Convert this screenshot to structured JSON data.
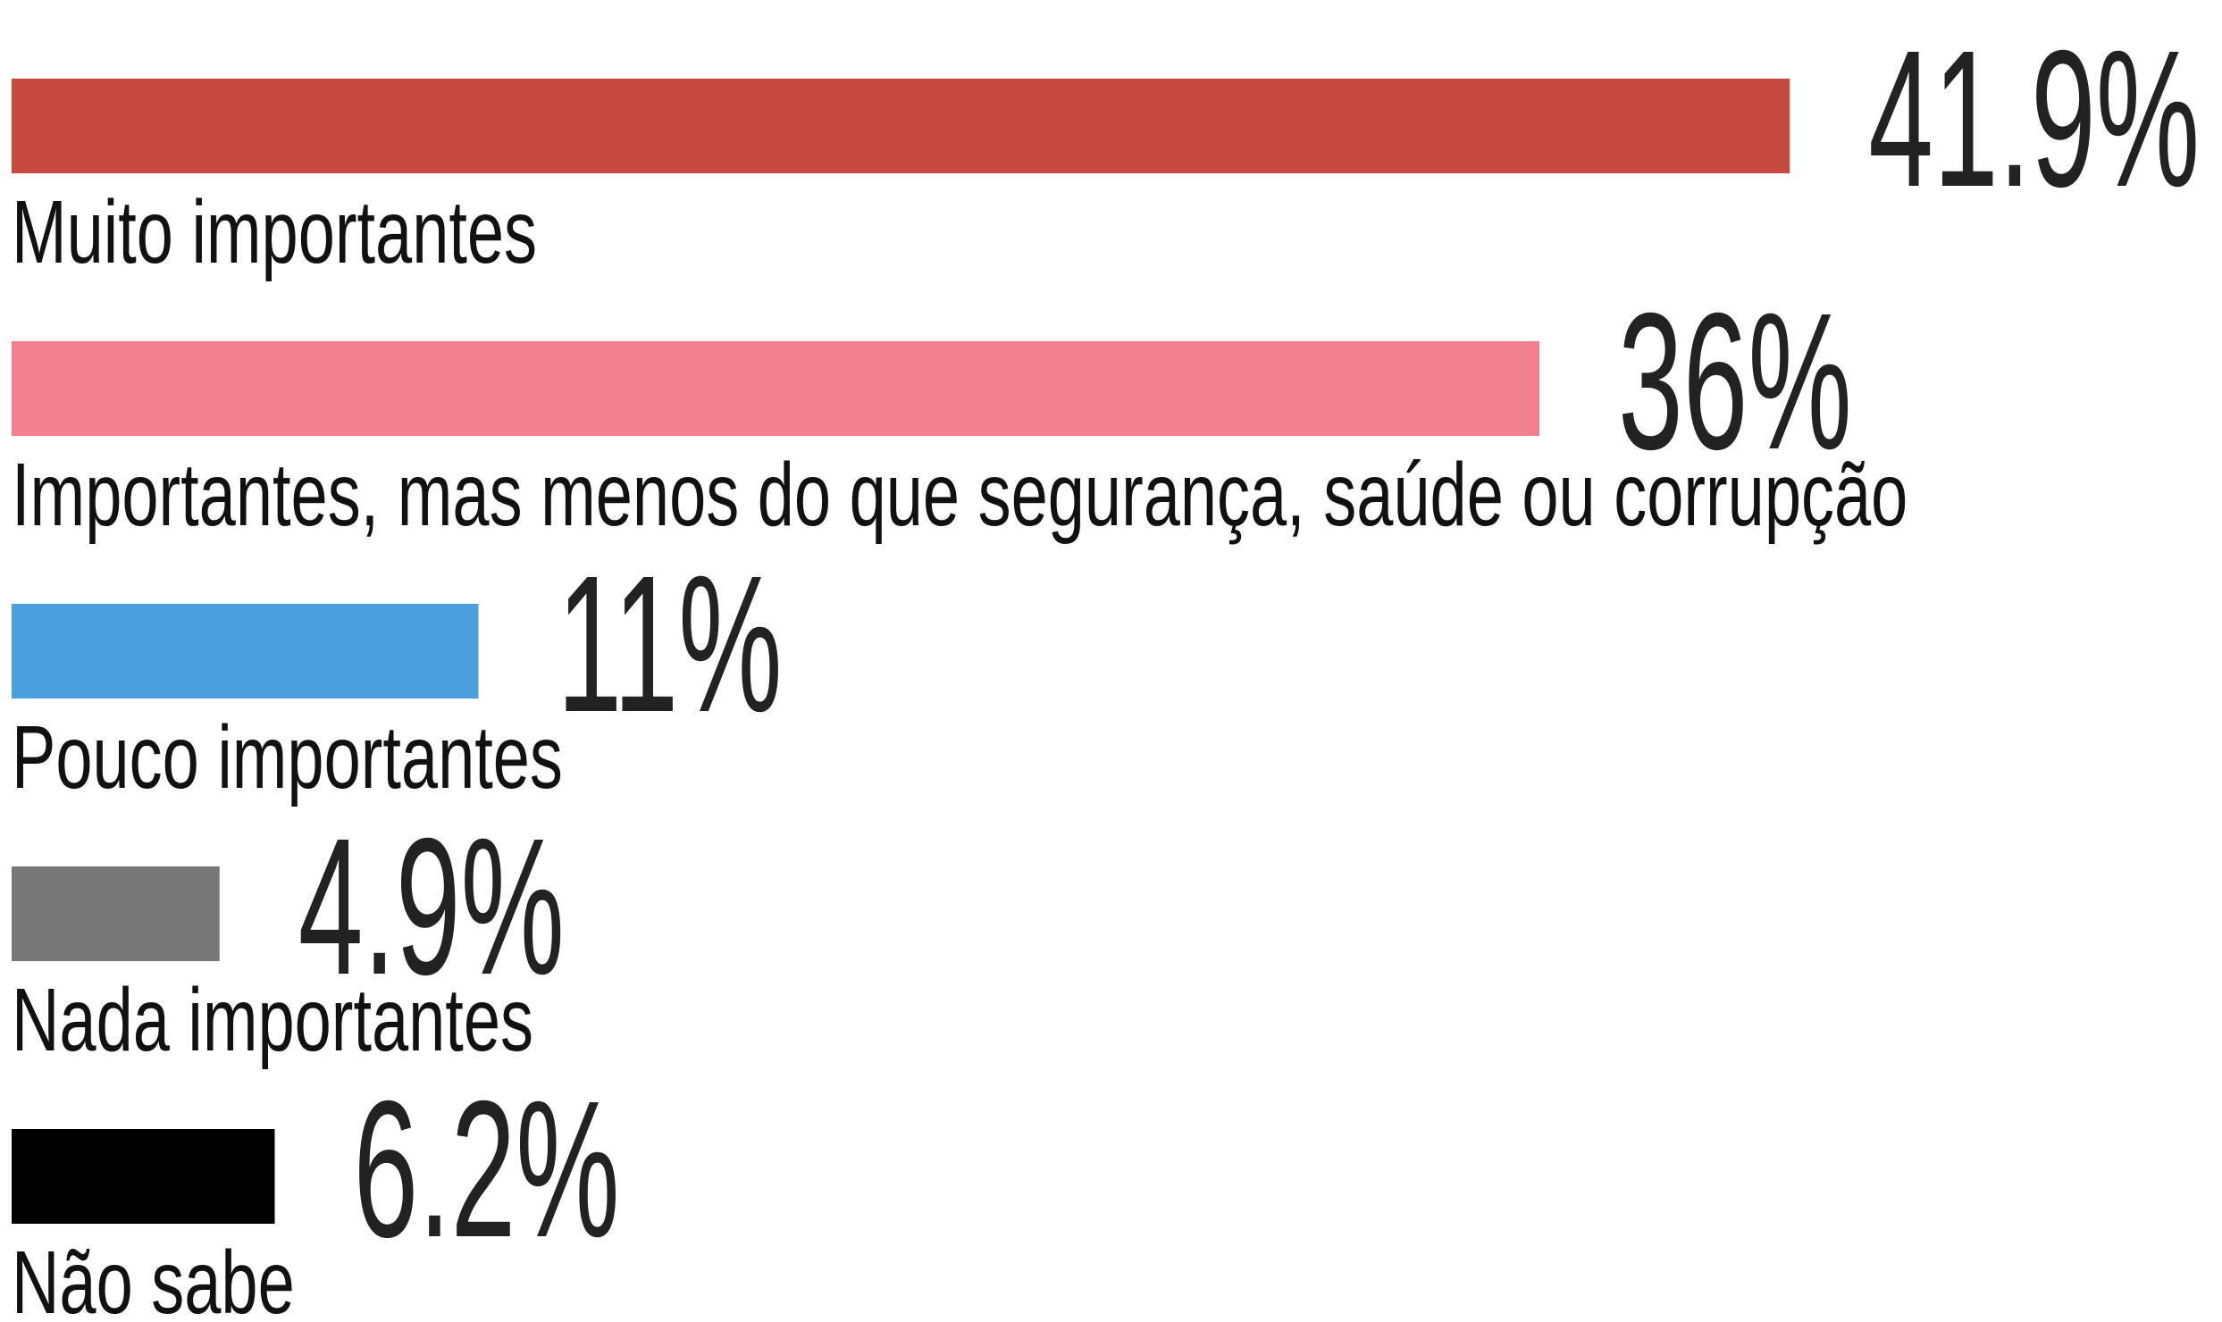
{
  "chart_data": {
    "type": "bar",
    "orientation": "horizontal",
    "categories": [
      "Muito importantes",
      "Importantes, mas menos do que segurança, saúde ou corrupção",
      "Pouco importantes",
      "Nada importantes",
      "Não sabe"
    ],
    "values": [
      41.9,
      36,
      11,
      4.9,
      6.2
    ],
    "value_labels": [
      "41.9%",
      "36%",
      "11%",
      "4.9%",
      "6.2%"
    ],
    "colors": [
      "#c5493e",
      "#f38091",
      "#4a9fdc",
      "#777777",
      "#000000"
    ]
  }
}
